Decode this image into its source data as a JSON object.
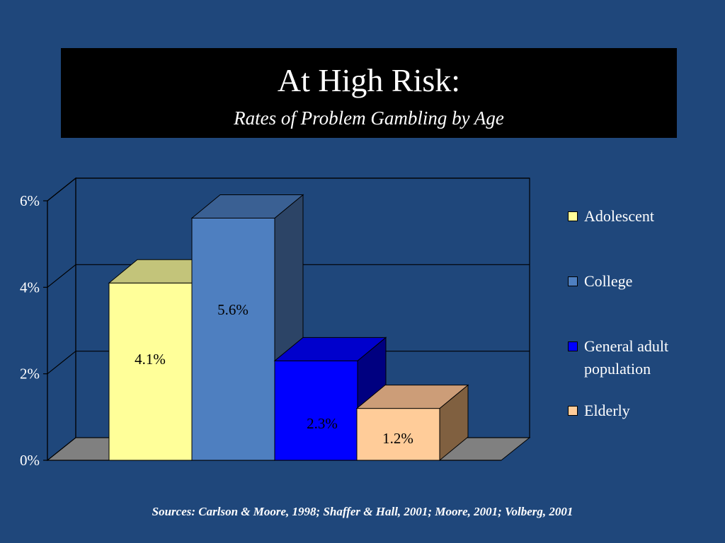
{
  "slide": {
    "title": "At High Risk:",
    "subtitle": "Rates of Problem Gambling by Age",
    "sources": "Sources: Carlson & Moore, 1998; Shaffer & Hall, 2001; Moore, 2001; Volberg, 2001",
    "background_color": "#1f477b"
  },
  "chart_data": {
    "type": "bar",
    "style": "3d-column",
    "categories": [
      "Adolescent",
      "College",
      "General adult population",
      "Elderly"
    ],
    "values": [
      4.1,
      5.6,
      2.3,
      1.2
    ],
    "data_labels": [
      "4.1%",
      "5.6%",
      "2.3%",
      "1.2%"
    ],
    "colors": [
      "#ffff99",
      "#4e7fc0",
      "#0000ff",
      "#ffcc99"
    ],
    "side_colors": [
      "#c6c270",
      "#2c4466",
      "#000080",
      "#806040"
    ],
    "top_colors": [
      "#c3c47a",
      "#3a6093",
      "#0000cc",
      "#cc9d78"
    ],
    "legend_labels": [
      "Adolescent",
      "College",
      "General adult population",
      "Elderly"
    ],
    "legend_position": "right",
    "y_ticks": [
      0,
      2,
      4,
      6
    ],
    "y_tick_labels": [
      "0%",
      "2%",
      "4%",
      "6%"
    ],
    "ylim": [
      0,
      6
    ],
    "grid": true,
    "title": "",
    "xlabel": "",
    "ylabel": ""
  }
}
